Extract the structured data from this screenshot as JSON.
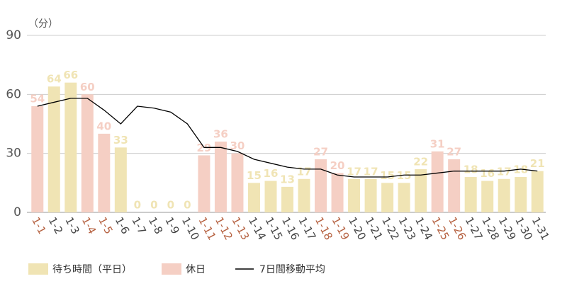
{
  "chart_data": {
    "type": "bar",
    "y_unit": "（分）",
    "categories": [
      "1-1",
      "1-2",
      "1-3",
      "1-4",
      "1-5",
      "1-6",
      "1-7",
      "1-8",
      "1-9",
      "1-10",
      "1-11",
      "1-12",
      "1-13",
      "1-14",
      "1-15",
      "1-16",
      "1-17",
      "1-18",
      "1-19",
      "1-20",
      "1-21",
      "1-22",
      "1-23",
      "1-24",
      "1-25",
      "1-26",
      "1-27",
      "1-28",
      "1-29",
      "1-30",
      "1-31"
    ],
    "series": [
      {
        "name": "待ち時間（平日）",
        "color": "#f0e4b4",
        "label_color": "#444444",
        "values": [
          null,
          64,
          66,
          null,
          null,
          33,
          0,
          0,
          0,
          0,
          null,
          null,
          null,
          15,
          16,
          13,
          17,
          null,
          null,
          17,
          17,
          15,
          15,
          22,
          null,
          null,
          18,
          16,
          17,
          18,
          21
        ]
      },
      {
        "name": "休日",
        "color": "#f5cfc4",
        "label_color": "#b5603f",
        "values": [
          54,
          null,
          null,
          60,
          40,
          null,
          null,
          null,
          null,
          null,
          29,
          36,
          30,
          null,
          null,
          null,
          null,
          27,
          20,
          null,
          null,
          null,
          null,
          null,
          31,
          27,
          null,
          null,
          null,
          null,
          null
        ]
      },
      {
        "name": "7日間移動平均",
        "type": "line",
        "color": "#000000",
        "values": [
          54,
          56,
          58,
          58,
          52,
          45,
          54,
          53,
          51,
          45,
          33,
          33,
          31,
          27,
          25,
          23,
          22,
          22,
          19,
          18,
          18,
          18,
          19,
          19,
          20,
          21,
          21,
          21,
          21,
          22,
          21
        ]
      }
    ],
    "ylim": [
      0,
      90
    ],
    "yticks": [
      0,
      30,
      60,
      90
    ],
    "grid": true
  }
}
